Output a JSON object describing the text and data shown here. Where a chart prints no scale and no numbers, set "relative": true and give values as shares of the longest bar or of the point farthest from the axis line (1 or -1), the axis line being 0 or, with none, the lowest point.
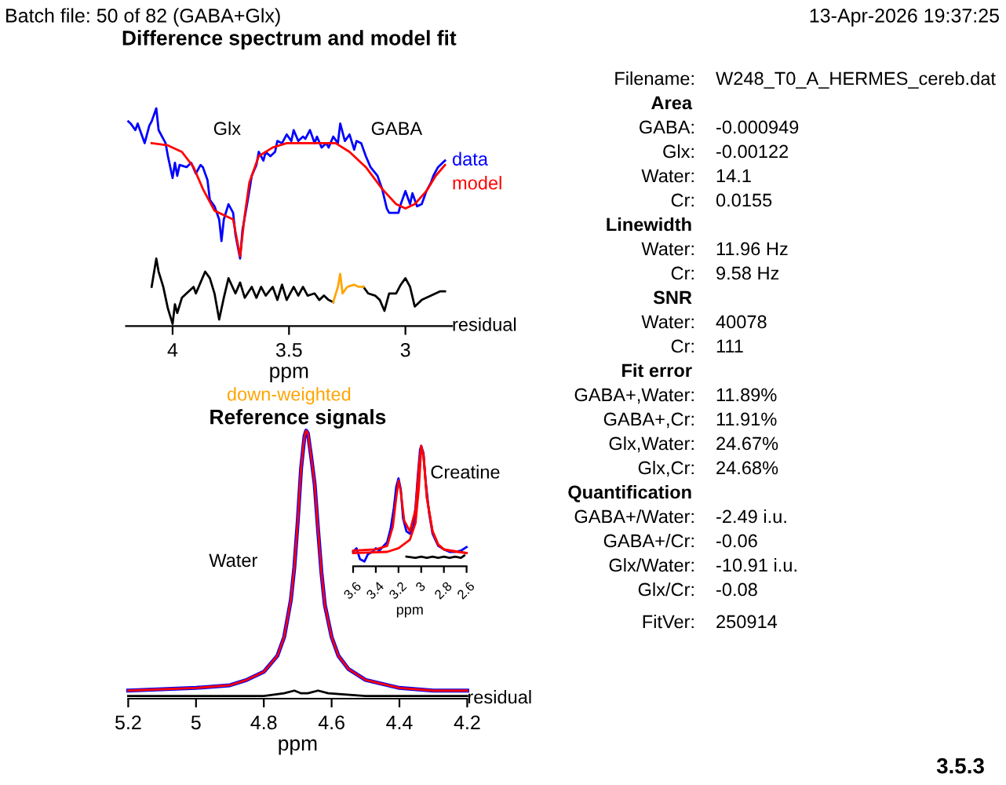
{
  "chart_data": [
    {
      "type": "line",
      "title": "Difference spectrum and model fit",
      "xlabel": "ppm",
      "relative": true,
      "xlim": [
        4.2,
        2.8
      ],
      "xticks": [
        4,
        3.5,
        3
      ],
      "annotations": [
        "Glx",
        "GABA"
      ],
      "series": [
        {
          "name": "data",
          "color": "#0000ff",
          "x": [
            4.19,
            4.18,
            4.16,
            4.15,
            4.13,
            4.12,
            4.1,
            4.09,
            4.07,
            4.06,
            4.04,
            4.03,
            4.02,
            4.0,
            3.99,
            3.98,
            3.97,
            3.94,
            3.92,
            3.9,
            3.88,
            3.87,
            3.85,
            3.84,
            3.82,
            3.8,
            3.79,
            3.78,
            3.76,
            3.74,
            3.73,
            3.71,
            3.7,
            3.68,
            3.66,
            3.64,
            3.63,
            3.61,
            3.6,
            3.58,
            3.56,
            3.55,
            3.53,
            3.51,
            3.49,
            3.48,
            3.46,
            3.44,
            3.43,
            3.41,
            3.39,
            3.38,
            3.36,
            3.34,
            3.33,
            3.31,
            3.29,
            3.28,
            3.26,
            3.24,
            3.22,
            3.21,
            3.19,
            3.17,
            3.15,
            3.12,
            3.1,
            3.08,
            3.07,
            3.05,
            3.03,
            3.02,
            3.0,
            2.98,
            2.97,
            2.95,
            2.93,
            2.91,
            2.89,
            2.88,
            2.86,
            2.84,
            2.83
          ],
          "values": [
            0.94,
            0.93,
            0.9,
            0.93,
            0.87,
            0.84,
            0.92,
            0.94,
            1.0,
            0.9,
            0.86,
            0.84,
            0.78,
            0.68,
            0.75,
            0.69,
            0.74,
            0.73,
            0.75,
            0.7,
            0.74,
            0.73,
            0.67,
            0.58,
            0.55,
            0.49,
            0.39,
            0.49,
            0.56,
            0.52,
            0.42,
            0.31,
            0.44,
            0.56,
            0.69,
            0.74,
            0.8,
            0.76,
            0.8,
            0.78,
            0.8,
            0.85,
            0.84,
            0.88,
            0.85,
            0.9,
            0.85,
            0.87,
            0.86,
            0.9,
            0.84,
            0.87,
            0.82,
            0.84,
            0.82,
            0.87,
            0.84,
            0.93,
            0.85,
            0.88,
            0.81,
            0.85,
            0.84,
            0.78,
            0.73,
            0.69,
            0.63,
            0.54,
            0.52,
            0.52,
            0.52,
            0.56,
            0.62,
            0.56,
            0.61,
            0.55,
            0.56,
            0.62,
            0.66,
            0.69,
            0.73,
            0.75,
            0.76
          ]
        },
        {
          "name": "model",
          "color": "#ff0000",
          "x": [
            4.09,
            4.02,
            3.96,
            3.91,
            3.87,
            3.82,
            3.78,
            3.74,
            3.71,
            3.69,
            3.67,
            3.63,
            3.57,
            3.51,
            3.42,
            3.3,
            3.24,
            3.17,
            3.1,
            3.04,
            3.0,
            2.96,
            2.91,
            2.87,
            2.83
          ],
          "values": [
            0.84,
            0.83,
            0.8,
            0.73,
            0.63,
            0.53,
            0.51,
            0.49,
            0.32,
            0.51,
            0.66,
            0.78,
            0.82,
            0.84,
            0.84,
            0.84,
            0.8,
            0.73,
            0.63,
            0.56,
            0.54,
            0.56,
            0.62,
            0.69,
            0.74
          ]
        },
        {
          "name": "residual",
          "color": "#000000",
          "x": [
            4.09,
            4.07,
            4.06,
            4.04,
            4.03,
            4.02,
            4.0,
            3.99,
            3.98,
            3.96,
            3.94,
            3.91,
            3.9,
            3.88,
            3.86,
            3.84,
            3.82,
            3.8,
            3.78,
            3.76,
            3.73,
            3.71,
            3.69,
            3.66,
            3.64,
            3.62,
            3.6,
            3.57,
            3.55,
            3.53,
            3.51,
            3.48,
            3.46,
            3.44,
            3.42,
            3.39,
            3.37,
            3.35,
            3.33,
            3.31,
            3.25,
            3.18,
            3.16,
            3.13,
            3.11,
            3.09,
            3.07,
            3.04,
            3.02,
            3.0,
            2.98,
            2.96,
            2.93,
            2.91,
            2.89,
            2.87,
            2.85,
            2.83
          ],
          "values": [
            0.18,
            0.31,
            0.25,
            0.18,
            0.13,
            0.08,
            0.01,
            0.1,
            0.06,
            0.13,
            0.15,
            0.18,
            0.15,
            0.2,
            0.25,
            0.22,
            0.15,
            0.03,
            0.13,
            0.22,
            0.15,
            0.2,
            0.13,
            0.18,
            0.13,
            0.18,
            0.14,
            0.18,
            0.12,
            0.19,
            0.12,
            0.18,
            0.14,
            0.18,
            0.14,
            0.15,
            0.12,
            0.14,
            0.12,
            0.11,
            null,
            0.18,
            0.15,
            0.14,
            0.12,
            0.07,
            0.15,
            0.15,
            0.19,
            0.22,
            0.18,
            0.09,
            0.12,
            0.13,
            0.14,
            0.15,
            0.16,
            0.16
          ]
        },
        {
          "name": "down-weighted",
          "color": "#ffa500",
          "x": [
            3.31,
            3.29,
            3.28,
            3.27,
            3.25,
            3.22,
            3.2,
            3.18
          ],
          "values": [
            0.11,
            0.18,
            0.24,
            0.15,
            0.18,
            0.19,
            0.18,
            0.18
          ]
        }
      ]
    },
    {
      "type": "line",
      "title": "Reference signals",
      "xlabel": "ppm",
      "relative": true,
      "xlim": [
        5.2,
        4.2
      ],
      "xticks": [
        5.2,
        5,
        4.8,
        4.6,
        4.4,
        4.2
      ],
      "annotations": [
        "Water"
      ],
      "series": [
        {
          "color": "#0000ff",
          "x": [
            5.2,
            5.0,
            4.9,
            4.85,
            4.8,
            4.76,
            4.74,
            4.72,
            4.71,
            4.7,
            4.69,
            4.68,
            4.675,
            4.67,
            4.66,
            4.65,
            4.64,
            4.63,
            4.62,
            4.6,
            4.58,
            4.55,
            4.5,
            4.4,
            4.3,
            4.2
          ],
          "values": [
            0.03,
            0.04,
            0.05,
            0.07,
            0.1,
            0.16,
            0.23,
            0.37,
            0.49,
            0.66,
            0.86,
            0.98,
            1.0,
            0.99,
            0.9,
            0.8,
            0.63,
            0.47,
            0.35,
            0.23,
            0.16,
            0.11,
            0.07,
            0.04,
            0.03,
            0.03
          ]
        },
        {
          "color": "#ff0000",
          "x": [
            5.2,
            5.0,
            4.9,
            4.85,
            4.8,
            4.76,
            4.74,
            4.72,
            4.71,
            4.7,
            4.69,
            4.68,
            4.675,
            4.67,
            4.66,
            4.65,
            4.64,
            4.63,
            4.62,
            4.6,
            4.58,
            4.55,
            4.5,
            4.4,
            4.3,
            4.2
          ],
          "values": [
            0.03,
            0.04,
            0.05,
            0.07,
            0.1,
            0.16,
            0.23,
            0.37,
            0.49,
            0.66,
            0.86,
            0.98,
            1.0,
            0.99,
            0.9,
            0.8,
            0.63,
            0.47,
            0.35,
            0.23,
            0.16,
            0.11,
            0.07,
            0.04,
            0.03,
            0.03
          ]
        },
        {
          "name": "residual",
          "color": "#000000",
          "x": [
            5.2,
            4.8,
            4.74,
            4.71,
            4.69,
            4.67,
            4.64,
            4.61,
            4.5,
            4.2
          ],
          "values": [
            0.01,
            0.01,
            0.02,
            0.03,
            0.02,
            0.02,
            0.03,
            0.02,
            0.01,
            0.01
          ]
        }
      ]
    },
    {
      "type": "line",
      "xlabel": "ppm",
      "relative": true,
      "xlim": [
        3.6,
        2.6
      ],
      "xticks": [
        3.6,
        3.4,
        3.2,
        3,
        2.8,
        2.6
      ],
      "annotations": [
        "Creatine"
      ],
      "series": [
        {
          "color": "#0000ff",
          "x": [
            3.6,
            3.57,
            3.54,
            3.5,
            3.47,
            3.43,
            3.4,
            3.37,
            3.33,
            3.3,
            3.27,
            3.24,
            3.22,
            3.2,
            3.18,
            3.16,
            3.13,
            3.1,
            3.07,
            3.05,
            3.03,
            3.01,
            3.0,
            2.98,
            2.96,
            2.93,
            2.9,
            2.85,
            2.8,
            2.75,
            2.7,
            2.65,
            2.6
          ],
          "values": [
            0.12,
            0.15,
            0.06,
            0.04,
            0.1,
            0.12,
            0.15,
            0.13,
            0.17,
            0.2,
            0.31,
            0.49,
            0.66,
            0.73,
            0.64,
            0.4,
            0.29,
            0.27,
            0.33,
            0.49,
            0.75,
            0.97,
            1.0,
            0.94,
            0.7,
            0.44,
            0.27,
            0.17,
            0.14,
            0.12,
            0.12,
            0.13,
            0.16
          ]
        },
        {
          "color": "#ff0000",
          "x": [
            3.6,
            3.4,
            3.3,
            3.25,
            3.22,
            3.2,
            3.18,
            3.15,
            3.1,
            3.05,
            3.02,
            3.0,
            2.98,
            2.95,
            2.9,
            2.85,
            2.8,
            2.7,
            2.6
          ],
          "values": [
            0.13,
            0.14,
            0.17,
            0.33,
            0.57,
            0.71,
            0.62,
            0.38,
            0.29,
            0.47,
            0.83,
            1.0,
            0.92,
            0.57,
            0.29,
            0.18,
            0.14,
            0.12,
            0.11
          ]
        },
        {
          "color": "#ff0000",
          "x": [
            3.6,
            3.3,
            3.2,
            3.1,
            3.05,
            3.02,
            3.0,
            2.98,
            2.95,
            2.9,
            2.85,
            2.8,
            2.6
          ],
          "values": [
            0.11,
            0.12,
            0.15,
            0.22,
            0.36,
            0.66,
            0.99,
            0.92,
            0.57,
            0.29,
            0.18,
            0.14,
            0.11
          ]
        },
        {
          "color": "#000000",
          "x": [
            3.13,
            3.05,
            3.0,
            2.95,
            2.9,
            2.85,
            2.8,
            2.75,
            2.7,
            2.65,
            2.62
          ],
          "values": [
            0.08,
            0.07,
            0.08,
            0.07,
            0.08,
            0.07,
            0.08,
            0.07,
            0.08,
            0.07,
            0.09
          ]
        }
      ]
    },
    {
      "type": "other",
      "annotations": [
        "Batch file: 50 of 82 (GABA+Glx)",
        "13-Apr-2026 19:37:25",
        "Filename: W248_T0_A_HERMES_cereb.dat",
        "Area",
        "GABA: -0.000949",
        "Glx: -0.00122",
        "Water: 14.1",
        "Cr: 0.0155",
        "Linewidth",
        "Water: 11.96 Hz",
        "Cr: 9.58 Hz",
        "SNR",
        "Water: 40078",
        "Cr: 111",
        "Fit error",
        "GABA+,Water: 11.89%",
        "GABA+,Cr: 11.91%",
        "Glx,Water: 24.67%",
        "Glx,Cr: 24.68%",
        "Quantification",
        "GABA+/Water: -2.49 i.u.",
        "GABA+/Cr: -0.06",
        "Glx/Water: -10.91 i.u.",
        "Glx/Cr: -0.08",
        "FitVer: 250914",
        "3.5.3"
      ]
    }
  ]
}
